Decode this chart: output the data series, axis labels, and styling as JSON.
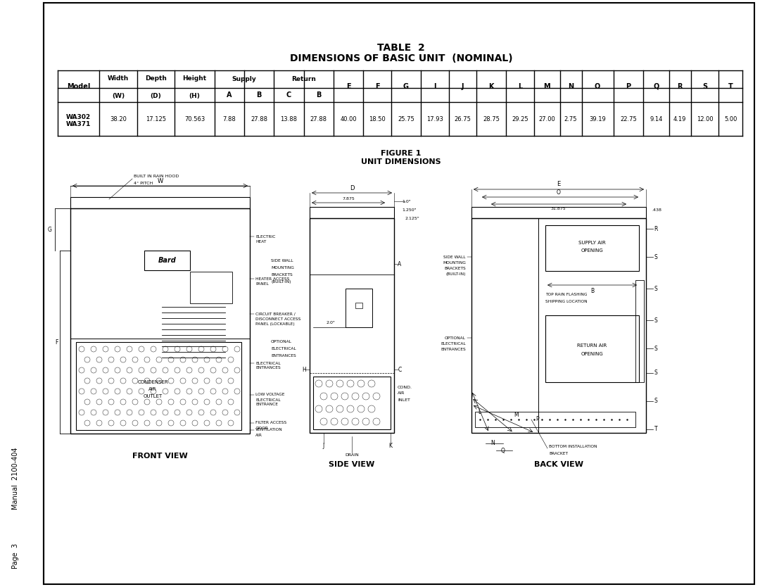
{
  "title1": "TABLE  2",
  "title2": "DIMENSIONS OF BASIC UNIT  (NOMINAL)",
  "fig_title1": "FIGURE 1",
  "fig_title2": "UNIT DIMENSIONS",
  "data_values": [
    "38.20",
    "17.125",
    "70.563",
    "7.88",
    "27.88",
    "13.88",
    "27.88",
    "40.00",
    "18.50",
    "25.75",
    "17.93",
    "26.75",
    "28.75",
    "29.25",
    "27.00",
    "2.75",
    "39.19",
    "22.75",
    "9.14",
    "4.19",
    "12.00",
    "5.00"
  ],
  "front_view_label": "FRONT VIEW",
  "side_view_label": "SIDE VIEW",
  "back_view_label": "BACK VIEW",
  "sidebar_text1": "Manual  2100-404",
  "sidebar_text2": "Page  3",
  "bg_color": "#ffffff",
  "line_color": "#000000",
  "text_color": "#000000"
}
